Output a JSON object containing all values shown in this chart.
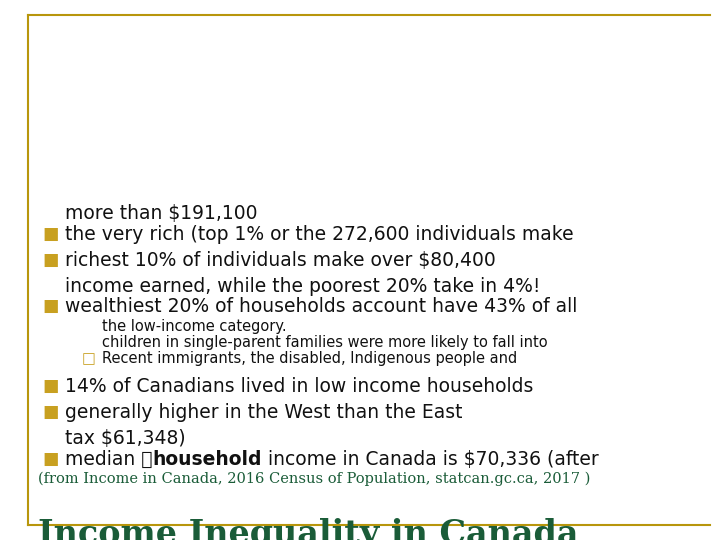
{
  "title": "Income Inequality in Canada",
  "subtitle": "(from Income in Canada, 2016 Census of Population, statcan.gc.ca, 2017 )",
  "title_color": "#1a5c38",
  "subtitle_color": "#1a5c38",
  "bullet_color": "#c8a020",
  "sub_bullet_color": "#c8a020",
  "text_color": "#111111",
  "background_color": "#ffffff",
  "border_color": "#b8960c",
  "title_fontsize": 24,
  "subtitle_fontsize": 10.5,
  "bullet_fontsize": 13.5,
  "sub_bullet_fontsize": 10.5,
  "bullets": [
    {
      "lines": [
        "median \bhousehold income in Canada is $70,336 (after",
        "tax $61,348)"
      ],
      "bold_word": "household",
      "sub_bullets": []
    },
    {
      "lines": [
        "generally higher in the West than the East"
      ],
      "bold_word": "",
      "sub_bullets": []
    },
    {
      "lines": [
        "14% of Canadians lived in low income households"
      ],
      "bold_word": "",
      "sub_bullets": [
        [
          "Recent immigrants, the disabled, Indigenous people and",
          "children in single-parent families were more likely to fall into",
          "the low-income category."
        ]
      ]
    },
    {
      "lines": [
        "wealthiest 20% of households account have 43% of all",
        "income earned, while the poorest 20% take in 4%!"
      ],
      "bold_word": "",
      "sub_bullets": []
    },
    {
      "lines": [
        "richest 10% of individuals make over $80,400"
      ],
      "bold_word": "",
      "sub_bullets": []
    },
    {
      "lines": [
        "the very rich (top 1% or the 272,600 individuals make",
        "more than $191,100"
      ],
      "bold_word": "",
      "sub_bullets": []
    }
  ]
}
